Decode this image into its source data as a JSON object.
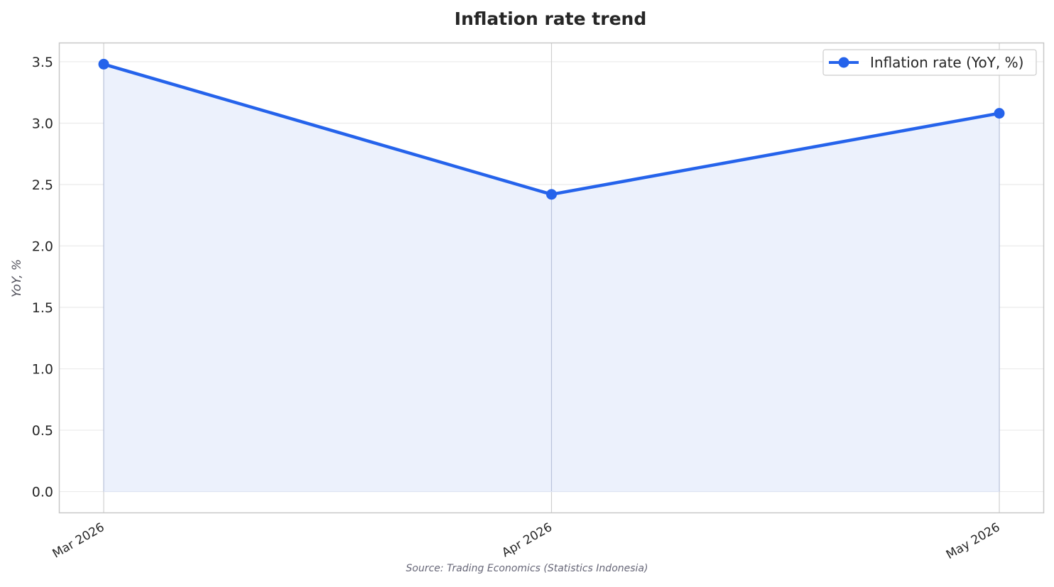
{
  "chart_data": {
    "type": "area",
    "title": "Inflation rate trend",
    "xlabel": "",
    "ylabel": "YoY, %",
    "categories": [
      "Mar 2026",
      "Apr 2026",
      "May 2026"
    ],
    "series": [
      {
        "name": "Inflation rate (YoY, %)",
        "values": [
          3.48,
          2.42,
          3.08
        ],
        "color": "#2563eb",
        "fill_color": "#ecf1fc"
      }
    ],
    "ylim": [
      -0.17,
      3.65
    ],
    "yticks": [
      0.0,
      0.5,
      1.0,
      1.5,
      2.0,
      2.5,
      3.0,
      3.5
    ],
    "ytick_labels": [
      "0.0",
      "0.5",
      "1.0",
      "1.5",
      "2.0",
      "2.5",
      "3.0",
      "3.5"
    ],
    "grid": true,
    "legend_position": "top-right",
    "source": "Source: Trading Economics (Statistics Indonesia)"
  }
}
